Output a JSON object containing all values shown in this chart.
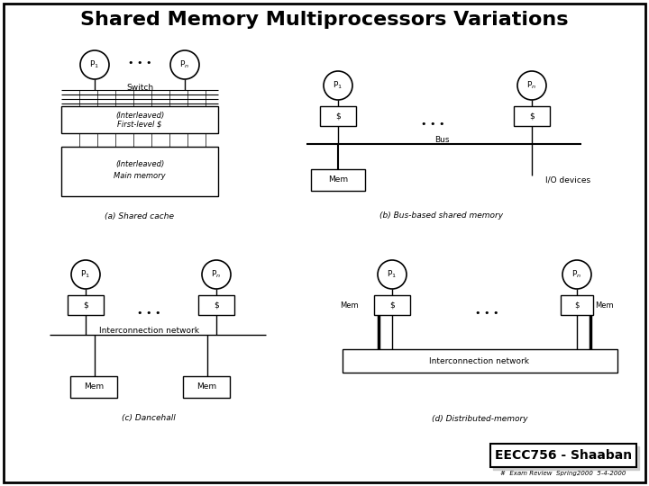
{
  "title": "Shared Memory Multiprocessors Variations",
  "footer_main": "EECC756 - Shaaban",
  "footer_sub": "#  Exam Review  Spring2000  5-4-2000",
  "bg_color": "#ffffff",
  "border_color": "#000000",
  "text_color": "#000000"
}
